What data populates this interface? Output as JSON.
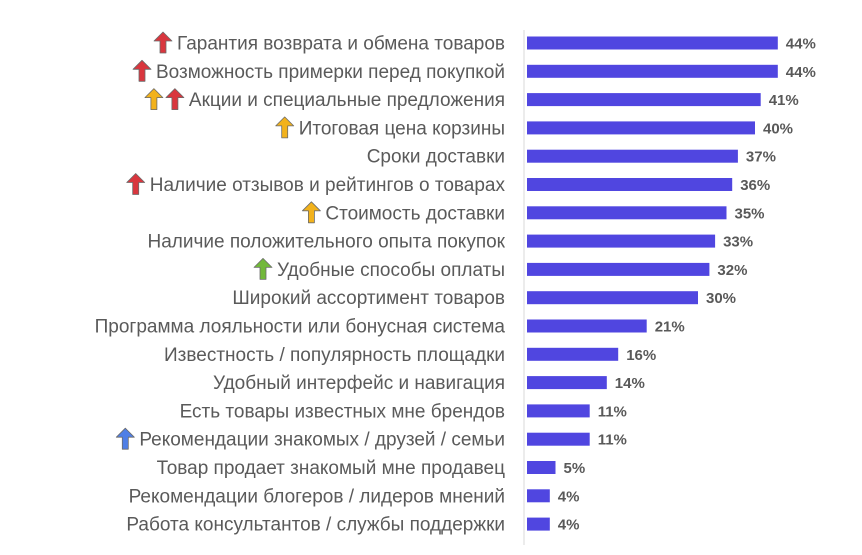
{
  "chart_data": {
    "type": "bar",
    "orientation": "horizontal",
    "title": "",
    "xlabel": "",
    "ylabel": "",
    "xlim": [
      0,
      50
    ],
    "grid": false,
    "legend": "none",
    "bar_color": "#5046e0",
    "value_suffix": "%",
    "categories": [
      "Гарантия возврата и обмена товаров",
      "Возможность примерки перед покупкой",
      "Акции и специальные предложения",
      "Итоговая цена корзины",
      "Сроки доставки",
      "Наличие отзывов и рейтингов о товарах",
      "Стоимость доставки",
      "Наличие положительного опыта покупок",
      "Удобные способы оплаты",
      "Широкий ассортимент товаров",
      "Программа лояльности или бонусная система",
      "Известность / популярность площадки",
      "Удобный интерфейс и навигация",
      "Есть товары известных мне брендов",
      "Рекомендации знакомых / друзей / семьи",
      "Товар продает знакомый мне продавец",
      "Рекомендации блогеров / лидеров мнений",
      "Работа консультантов / службы поддержки"
    ],
    "values": [
      44,
      44,
      41,
      40,
      37,
      36,
      35,
      33,
      32,
      30,
      21,
      16,
      14,
      11,
      11,
      5,
      4,
      4
    ],
    "markers": [
      [
        "red-up-arrow-icon"
      ],
      [
        "red-up-arrow-icon"
      ],
      [
        "yellow-up-arrow-icon",
        "red-up-arrow-icon"
      ],
      [
        "yellow-up-arrow-icon"
      ],
      [],
      [
        "red-up-arrow-icon"
      ],
      [
        "yellow-up-arrow-icon"
      ],
      [],
      [
        "green-up-arrow-icon"
      ],
      [],
      [],
      [],
      [],
      [],
      [
        "blue-up-arrow-icon"
      ],
      [],
      [],
      []
    ],
    "marker_colors": {
      "red-up-arrow-icon": "#d9363e",
      "yellow-up-arrow-icon": "#f2b21c",
      "green-up-arrow-icon": "#72b83a",
      "blue-up-arrow-icon": "#4f7fe6"
    }
  }
}
